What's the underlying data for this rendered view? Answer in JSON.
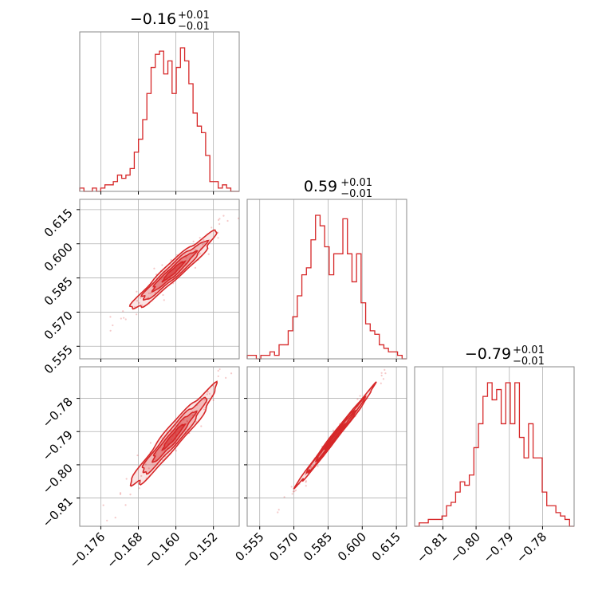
{
  "chart_data": {
    "type": "corner",
    "series_color": "#d62728",
    "grid": true,
    "parameters": [
      {
        "title_value": "−0.16",
        "title_plus": "+0.01",
        "title_minus": "−0.01",
        "median": -0.1605,
        "sigma": 0.0045,
        "range": [
          -0.1805,
          -0.1465
        ],
        "ticks": [
          -0.176,
          -0.168,
          -0.16,
          -0.152
        ],
        "tick_labels": [
          "−0.176",
          "−0.168",
          "−0.160",
          "−0.152"
        ],
        "hist": [
          1,
          0,
          0,
          1,
          0,
          1,
          2,
          2,
          3,
          5,
          4,
          5,
          7,
          12,
          16,
          22,
          30,
          38,
          42,
          43,
          36,
          40,
          30,
          38,
          44,
          40,
          33,
          24,
          20,
          18,
          11,
          3,
          3,
          1,
          2,
          1,
          0,
          0
        ]
      },
      {
        "title_value": "0.59",
        "title_plus": "+0.01",
        "title_minus": "−0.01",
        "median": 0.588,
        "sigma": 0.0085,
        "range": [
          0.5495,
          0.6195
        ],
        "ticks": [
          0.555,
          0.57,
          0.585,
          0.6,
          0.615
        ],
        "tick_labels": [
          "0.555",
          "0.570",
          "0.585",
          "0.600",
          "0.615"
        ],
        "hist": [
          1,
          1,
          0,
          1,
          1,
          2,
          1,
          4,
          4,
          8,
          12,
          18,
          24,
          26,
          34,
          41,
          38,
          32,
          24,
          30,
          30,
          40,
          30,
          22,
          30,
          16,
          10,
          8,
          7,
          4,
          3,
          2,
          2,
          1,
          0
        ]
      },
      {
        "title_value": "−0.79",
        "title_plus": "+0.01",
        "title_minus": "−0.01",
        "median": -0.7915,
        "sigma": 0.0075,
        "range": [
          -0.8185,
          -0.7705
        ],
        "ticks": [
          -0.81,
          -0.8,
          -0.79,
          -0.78
        ],
        "tick_labels": [
          "−0.81",
          "−0.80",
          "−0.79",
          "−0.78"
        ],
        "hist": [
          0,
          1,
          1,
          2,
          2,
          2,
          3,
          6,
          7,
          10,
          13,
          12,
          15,
          23,
          30,
          38,
          42,
          37,
          40,
          30,
          42,
          30,
          42,
          26,
          20,
          30,
          20,
          20,
          10,
          6,
          6,
          4,
          3,
          2,
          0
        ]
      }
    ],
    "correlations": {
      "p1_p0": 0.96,
      "p2_p0": 0.96,
      "p2_p1": 0.995
    }
  }
}
